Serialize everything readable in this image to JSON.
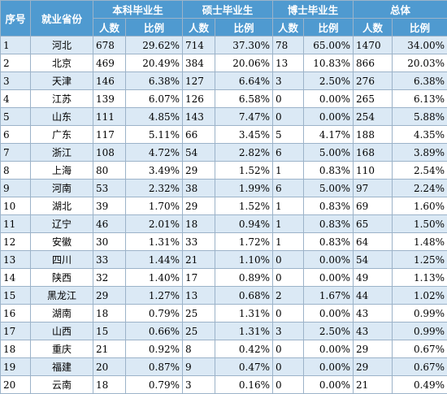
{
  "header": {
    "index": "序号",
    "province": "就业省份",
    "groups": [
      "本科毕业生",
      "硕士毕业生",
      "博士毕业生",
      "总体"
    ],
    "count": "人数",
    "ratio": "比例"
  },
  "rows": [
    {
      "idx": "1",
      "prov": "河北",
      "b": [
        "678",
        "29.62%"
      ],
      "m": [
        "714",
        "37.30%"
      ],
      "d": [
        "78",
        "65.00%"
      ],
      "t": [
        "1470",
        "34.00%"
      ]
    },
    {
      "idx": "2",
      "prov": "北京",
      "b": [
        "469",
        "20.49%"
      ],
      "m": [
        "384",
        "20.06%"
      ],
      "d": [
        "13",
        "10.83%"
      ],
      "t": [
        "866",
        "20.03%"
      ]
    },
    {
      "idx": "3",
      "prov": "天津",
      "b": [
        "146",
        "6.38%"
      ],
      "m": [
        "127",
        "6.64%"
      ],
      "d": [
        "3",
        "2.50%"
      ],
      "t": [
        "276",
        "6.38%"
      ]
    },
    {
      "idx": "4",
      "prov": "江苏",
      "b": [
        "139",
        "6.07%"
      ],
      "m": [
        "126",
        "6.58%"
      ],
      "d": [
        "0",
        "0.00%"
      ],
      "t": [
        "265",
        "6.13%"
      ]
    },
    {
      "idx": "5",
      "prov": "山东",
      "b": [
        "111",
        "4.85%"
      ],
      "m": [
        "143",
        "7.47%"
      ],
      "d": [
        "0",
        "0.00%"
      ],
      "t": [
        "254",
        "5.88%"
      ]
    },
    {
      "idx": "6",
      "prov": "广东",
      "b": [
        "117",
        "5.11%"
      ],
      "m": [
        "66",
        "3.45%"
      ],
      "d": [
        "5",
        "4.17%"
      ],
      "t": [
        "188",
        "4.35%"
      ]
    },
    {
      "idx": "7",
      "prov": "浙江",
      "b": [
        "108",
        "4.72%"
      ],
      "m": [
        "54",
        "2.82%"
      ],
      "d": [
        "6",
        "5.00%"
      ],
      "t": [
        "168",
        "3.89%"
      ]
    },
    {
      "idx": "8",
      "prov": "上海",
      "b": [
        "80",
        "3.49%"
      ],
      "m": [
        "29",
        "1.52%"
      ],
      "d": [
        "1",
        "0.83%"
      ],
      "t": [
        "110",
        "2.54%"
      ]
    },
    {
      "idx": "9",
      "prov": "河南",
      "b": [
        "53",
        "2.32%"
      ],
      "m": [
        "38",
        "1.99%"
      ],
      "d": [
        "6",
        "5.00%"
      ],
      "t": [
        "97",
        "2.24%"
      ]
    },
    {
      "idx": "10",
      "prov": "湖北",
      "b": [
        "39",
        "1.70%"
      ],
      "m": [
        "29",
        "1.52%"
      ],
      "d": [
        "1",
        "0.83%"
      ],
      "t": [
        "69",
        "1.60%"
      ]
    },
    {
      "idx": "11",
      "prov": "辽宁",
      "b": [
        "46",
        "2.01%"
      ],
      "m": [
        "18",
        "0.94%"
      ],
      "d": [
        "1",
        "0.83%"
      ],
      "t": [
        "65",
        "1.50%"
      ]
    },
    {
      "idx": "12",
      "prov": "安徽",
      "b": [
        "30",
        "1.31%"
      ],
      "m": [
        "33",
        "1.72%"
      ],
      "d": [
        "1",
        "0.83%"
      ],
      "t": [
        "64",
        "1.48%"
      ]
    },
    {
      "idx": "13",
      "prov": "四川",
      "b": [
        "33",
        "1.44%"
      ],
      "m": [
        "21",
        "1.10%"
      ],
      "d": [
        "0",
        "0.00%"
      ],
      "t": [
        "54",
        "1.25%"
      ]
    },
    {
      "idx": "14",
      "prov": "陕西",
      "b": [
        "32",
        "1.40%"
      ],
      "m": [
        "17",
        "0.89%"
      ],
      "d": [
        "0",
        "0.00%"
      ],
      "t": [
        "49",
        "1.13%"
      ]
    },
    {
      "idx": "15",
      "prov": "黑龙江",
      "b": [
        "29",
        "1.27%"
      ],
      "m": [
        "13",
        "0.68%"
      ],
      "d": [
        "2",
        "1.67%"
      ],
      "t": [
        "44",
        "1.02%"
      ]
    },
    {
      "idx": "16",
      "prov": "湖南",
      "b": [
        "18",
        "0.79%"
      ],
      "m": [
        "25",
        "1.31%"
      ],
      "d": [
        "0",
        "0.00%"
      ],
      "t": [
        "43",
        "0.99%"
      ]
    },
    {
      "idx": "17",
      "prov": "山西",
      "b": [
        "15",
        "0.66%"
      ],
      "m": [
        "25",
        "1.31%"
      ],
      "d": [
        "3",
        "2.50%"
      ],
      "t": [
        "43",
        "0.99%"
      ]
    },
    {
      "idx": "18",
      "prov": "重庆",
      "b": [
        "21",
        "0.92%"
      ],
      "m": [
        "8",
        "0.42%"
      ],
      "d": [
        "0",
        "0.00%"
      ],
      "t": [
        "29",
        "0.67%"
      ]
    },
    {
      "idx": "19",
      "prov": "福建",
      "b": [
        "20",
        "0.87%"
      ],
      "m": [
        "9",
        "0.47%"
      ],
      "d": [
        "0",
        "0.00%"
      ],
      "t": [
        "29",
        "0.67%"
      ]
    },
    {
      "idx": "20",
      "prov": "云南",
      "b": [
        "18",
        "0.79%"
      ],
      "m": [
        "3",
        "0.16%"
      ],
      "d": [
        "0",
        "0.00%"
      ],
      "t": [
        "21",
        "0.49%"
      ]
    }
  ],
  "colors": {
    "header_bg": "#4f9ad0",
    "header_text": "#ffffff",
    "row_stripe": "#dbe9f5",
    "grid": "#9cb3c9"
  }
}
